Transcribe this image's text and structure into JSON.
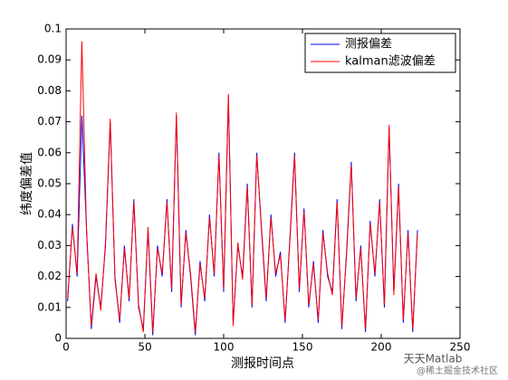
{
  "chart_data": {
    "type": "line",
    "xlabel": "测报时间点",
    "ylabel": "纬度偏差值",
    "x": [
      1,
      4,
      7,
      10,
      13,
      16,
      19,
      22,
      25,
      28,
      31,
      34,
      37,
      40,
      43,
      46,
      49,
      52,
      55,
      58,
      61,
      64,
      67,
      70,
      73,
      76,
      79,
      82,
      85,
      88,
      91,
      94,
      97,
      100,
      103,
      106,
      109,
      112,
      115,
      118,
      121,
      124,
      127,
      130,
      133,
      136,
      139,
      142,
      145,
      148,
      151,
      154,
      157,
      160,
      163,
      166,
      169,
      172,
      175,
      178,
      181,
      184,
      187,
      190,
      193,
      196,
      199,
      202,
      205,
      208,
      211,
      214,
      217,
      220,
      223
    ],
    "series": [
      {
        "name": "测报偏差",
        "color": "#0000ff",
        "values": [
          0.012,
          0.037,
          0.02,
          0.072,
          0.035,
          0.003,
          0.02,
          0.01,
          0.03,
          0.07,
          0.02,
          0.005,
          0.03,
          0.012,
          0.045,
          0.01,
          0.003,
          0.035,
          0.001,
          0.03,
          0.02,
          0.045,
          0.015,
          0.072,
          0.01,
          0.035,
          0.02,
          0.001,
          0.025,
          0.012,
          0.04,
          0.02,
          0.06,
          0.015,
          0.078,
          0.005,
          0.03,
          0.02,
          0.05,
          0.01,
          0.06,
          0.035,
          0.012,
          0.04,
          0.02,
          0.028,
          0.005,
          0.032,
          0.06,
          0.015,
          0.042,
          0.01,
          0.025,
          0.005,
          0.035,
          0.02,
          0.015,
          0.045,
          0.003,
          0.028,
          0.057,
          0.012,
          0.03,
          0.002,
          0.038,
          0.02,
          0.045,
          0.01,
          0.068,
          0.015,
          0.05,
          0.005,
          0.035,
          0.002,
          0.035
        ]
      },
      {
        "name": "kalman滤波偏差",
        "color": "#ff0000",
        "values": [
          0.013,
          0.036,
          0.021,
          0.096,
          0.034,
          0.004,
          0.021,
          0.009,
          0.031,
          0.071,
          0.019,
          0.006,
          0.029,
          0.013,
          0.044,
          0.011,
          0.002,
          0.036,
          0.002,
          0.029,
          0.021,
          0.044,
          0.016,
          0.073,
          0.011,
          0.034,
          0.021,
          0.002,
          0.024,
          0.013,
          0.039,
          0.021,
          0.059,
          0.016,
          0.079,
          0.004,
          0.031,
          0.019,
          0.049,
          0.011,
          0.059,
          0.036,
          0.013,
          0.039,
          0.021,
          0.027,
          0.006,
          0.031,
          0.059,
          0.016,
          0.041,
          0.011,
          0.024,
          0.006,
          0.034,
          0.021,
          0.014,
          0.044,
          0.004,
          0.027,
          0.056,
          0.013,
          0.029,
          0.003,
          0.037,
          0.021,
          0.044,
          0.011,
          0.069,
          0.014,
          0.049,
          0.006,
          0.034,
          0.003,
          0.034
        ]
      }
    ],
    "xlim": [
      0,
      250
    ],
    "xticks": [
      0,
      50,
      100,
      150,
      200,
      250
    ],
    "ylim": [
      0,
      0.1
    ],
    "yticks": [
      0,
      0.01,
      0.02,
      0.03,
      0.04,
      0.05,
      0.06,
      0.07,
      0.08,
      0.09,
      0.1
    ],
    "legend": "upper right"
  },
  "watermark": {
    "name": "天天Matlab",
    "site": "@稀土掘金技术社区"
  }
}
